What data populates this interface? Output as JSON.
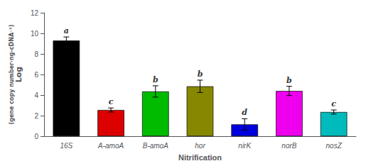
{
  "chart_data": {
    "type": "bar",
    "categories": [
      "16S",
      "A-amoA",
      "B-amoA",
      "hor",
      "nirK",
      "norB",
      "nosZ"
    ],
    "values": [
      9.3,
      2.55,
      4.35,
      4.85,
      1.15,
      4.4,
      2.35
    ],
    "errors": [
      0.35,
      0.2,
      0.55,
      0.6,
      0.55,
      0.45,
      0.2
    ],
    "annotations": [
      "a",
      "c",
      "b",
      "b",
      "d",
      "b",
      "c"
    ],
    "colors": [
      "#000000",
      "#dd0000",
      "#00bb00",
      "#888800",
      "#0000dd",
      "#ee00ee",
      "#00bbbb"
    ],
    "ylabel": [
      "Log",
      "(gene copy number·ng-cDNA⁻¹)"
    ],
    "xlabel": "Nitrification",
    "ylim": [
      0,
      12
    ],
    "yticks": [
      0,
      2,
      4,
      6,
      8,
      10,
      12
    ],
    "grid": false
  }
}
